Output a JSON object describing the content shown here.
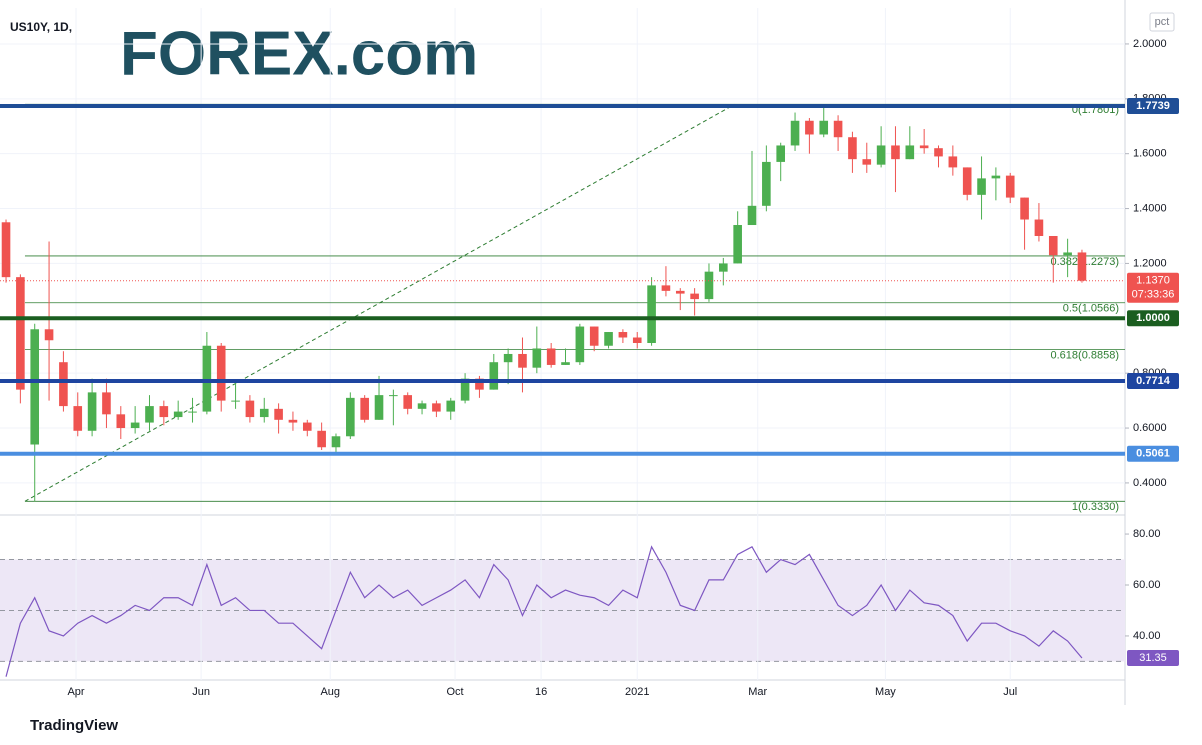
{
  "header": {
    "symbol": "US10Y, 1D,",
    "unit": "pct",
    "logo": "FOREX.com",
    "footer": "TradingView"
  },
  "chart_data": [
    {
      "type": "candlestick",
      "up_color": "#4caf50",
      "down_color": "#ef5350",
      "open": [
        1.35,
        1.15,
        0.54,
        0.96,
        0.84,
        0.68,
        0.59,
        0.73,
        0.65,
        0.6,
        0.62,
        0.68,
        0.64,
        0.66,
        0.66,
        0.9,
        0.7,
        0.7,
        0.64,
        0.67,
        0.63,
        0.62,
        0.59,
        0.53,
        0.57,
        0.71,
        0.63,
        0.72,
        0.72,
        0.67,
        0.69,
        0.66,
        0.7,
        0.78,
        0.74,
        0.84,
        0.87,
        0.82,
        0.89,
        0.83,
        0.84,
        0.97,
        0.9,
        0.95,
        0.93,
        0.91,
        1.12,
        1.1,
        1.09,
        1.07,
        1.17,
        1.2,
        1.34,
        1.41,
        1.57,
        1.63,
        1.72,
        1.67,
        1.72,
        1.66,
        1.58,
        1.56,
        1.63,
        1.58,
        1.63,
        1.62,
        1.59,
        1.55,
        1.45,
        1.51,
        1.52,
        1.44,
        1.36,
        1.3,
        1.23,
        1.24
      ],
      "high": [
        1.36,
        1.16,
        0.98,
        1.28,
        0.88,
        0.73,
        0.78,
        0.78,
        0.68,
        0.68,
        0.72,
        0.7,
        0.7,
        0.71,
        0.95,
        0.91,
        0.77,
        0.72,
        0.71,
        0.69,
        0.66,
        0.63,
        0.62,
        0.58,
        0.73,
        0.72,
        0.79,
        0.74,
        0.73,
        0.7,
        0.7,
        0.71,
        0.8,
        0.79,
        0.87,
        0.89,
        0.93,
        0.97,
        0.91,
        0.89,
        0.98,
        0.97,
        0.95,
        0.96,
        0.95,
        1.15,
        1.19,
        1.11,
        1.11,
        1.2,
        1.22,
        1.39,
        1.61,
        1.63,
        1.64,
        1.75,
        1.73,
        1.78,
        1.74,
        1.68,
        1.64,
        1.7,
        1.7,
        1.7,
        1.69,
        1.63,
        1.63,
        1.55,
        1.59,
        1.55,
        1.53,
        1.44,
        1.42,
        1.3,
        1.29,
        1.25
      ],
      "low": [
        1.13,
        0.69,
        0.333,
        0.7,
        0.66,
        0.57,
        0.57,
        0.6,
        0.56,
        0.58,
        0.59,
        0.61,
        0.63,
        0.62,
        0.65,
        0.66,
        0.67,
        0.62,
        0.62,
        0.58,
        0.59,
        0.57,
        0.52,
        0.505,
        0.56,
        0.62,
        0.63,
        0.61,
        0.65,
        0.65,
        0.64,
        0.63,
        0.69,
        0.71,
        0.74,
        0.76,
        0.73,
        0.8,
        0.82,
        0.83,
        0.83,
        0.88,
        0.89,
        0.91,
        0.89,
        0.9,
        1.08,
        1.03,
        1.01,
        1.06,
        1.12,
        1.2,
        1.34,
        1.39,
        1.5,
        1.61,
        1.6,
        1.66,
        1.61,
        1.53,
        1.53,
        1.55,
        1.46,
        1.58,
        1.6,
        1.55,
        1.52,
        1.43,
        1.36,
        1.43,
        1.42,
        1.25,
        1.28,
        1.13,
        1.15,
        1.13
      ],
      "close": [
        1.15,
        0.74,
        0.96,
        0.92,
        0.68,
        0.59,
        0.73,
        0.65,
        0.6,
        0.62,
        0.68,
        0.64,
        0.66,
        0.66,
        0.9,
        0.7,
        0.7,
        0.64,
        0.67,
        0.63,
        0.62,
        0.59,
        0.53,
        0.57,
        0.71,
        0.63,
        0.72,
        0.72,
        0.67,
        0.69,
        0.66,
        0.7,
        0.78,
        0.74,
        0.84,
        0.87,
        0.82,
        0.89,
        0.83,
        0.84,
        0.97,
        0.9,
        0.95,
        0.93,
        0.91,
        1.12,
        1.1,
        1.09,
        1.07,
        1.17,
        1.2,
        1.34,
        1.41,
        1.57,
        1.63,
        1.72,
        1.67,
        1.72,
        1.66,
        1.58,
        1.56,
        1.63,
        1.58,
        1.63,
        1.62,
        1.59,
        1.55,
        1.45,
        1.51,
        1.52,
        1.44,
        1.36,
        1.3,
        1.23,
        1.24,
        1.137
      ],
      "xlim": [
        -0.42,
        78
      ],
      "xticks": [
        {
          "value": 4.88,
          "label": "Apr"
        },
        {
          "value": 13.6,
          "label": "Jun"
        },
        {
          "value": 22.6,
          "label": "Aug"
        },
        {
          "value": 31.3,
          "label": "Oct"
        },
        {
          "value": 37.3,
          "label": "16"
        },
        {
          "value": 44.0,
          "label": "2021"
        },
        {
          "value": 52.4,
          "label": "Mar"
        },
        {
          "value": 61.3,
          "label": "May"
        },
        {
          "value": 70.0,
          "label": "Jul"
        }
      ],
      "ylim": [
        0.294,
        2.131
      ],
      "yticks": [
        {
          "value": 0.4,
          "label": "0.4000"
        },
        {
          "value": 0.6,
          "label": "0.6000"
        },
        {
          "value": 0.8,
          "label": "0.8000"
        },
        {
          "value": 1.2,
          "label": "1.2000"
        },
        {
          "value": 1.4,
          "label": "1.4000"
        },
        {
          "value": 1.6,
          "label": "1.6000"
        },
        {
          "value": 1.8,
          "label": "1.8000"
        },
        {
          "value": 2.0,
          "label": "2.0000"
        }
      ],
      "grid": true,
      "levels": [
        {
          "value": 1.7739,
          "label": "1.7739",
          "color": "#1f4e96"
        },
        {
          "value": 1.0,
          "label": "1.0000",
          "color": "#1b5e20"
        },
        {
          "value": 0.7714,
          "label": "0.7714",
          "color": "#1e45a0"
        },
        {
          "value": 0.5061,
          "label": "0.5061",
          "color": "#4a8ee0"
        }
      ],
      "fib": [
        {
          "value": 1.7801,
          "label": "0(1.7801)"
        },
        {
          "value": 1.2273,
          "label": "0.382(1.2273)"
        },
        {
          "value": 1.0566,
          "label": "0.5(1.0566)"
        },
        {
          "value": 0.8858,
          "label": "0.618(0.8858)"
        },
        {
          "value": 0.333,
          "label": "1(0.3330)"
        }
      ],
      "fib_color": "#2e7d32",
      "last": {
        "value": 1.137,
        "label": "1.1370",
        "countdown": "07:33:36",
        "color": "#ef5350"
      }
    },
    {
      "type": "line",
      "name": "RSI",
      "color": "#7e57c2",
      "values": [
        24,
        45,
        55,
        42,
        40,
        45,
        48,
        45,
        48,
        52,
        50,
        55,
        55,
        52,
        68,
        52,
        55,
        50,
        50,
        45,
        45,
        40,
        35,
        50,
        65,
        55,
        60,
        55,
        58,
        52,
        55,
        58,
        62,
        55,
        68,
        62,
        48,
        60,
        55,
        58,
        56,
        55,
        52,
        58,
        55,
        75,
        65,
        52,
        50,
        62,
        62,
        72,
        75,
        65,
        70,
        68,
        72,
        62,
        52,
        48,
        52,
        60,
        50,
        58,
        53,
        52,
        48,
        38,
        45,
        45,
        42,
        40,
        36,
        42,
        38,
        31.35
      ],
      "value_labels": {
        "75": "31.35"
      },
      "ylim": [
        22.7,
        86.3
      ],
      "yticks": [
        {
          "value": 40,
          "label": "40.00"
        },
        {
          "value": 60,
          "label": "60.00"
        },
        {
          "value": 80,
          "label": "80.00"
        }
      ],
      "bands": [
        30,
        70
      ],
      "midline": 50,
      "band_color": "#ede7f6"
    }
  ]
}
